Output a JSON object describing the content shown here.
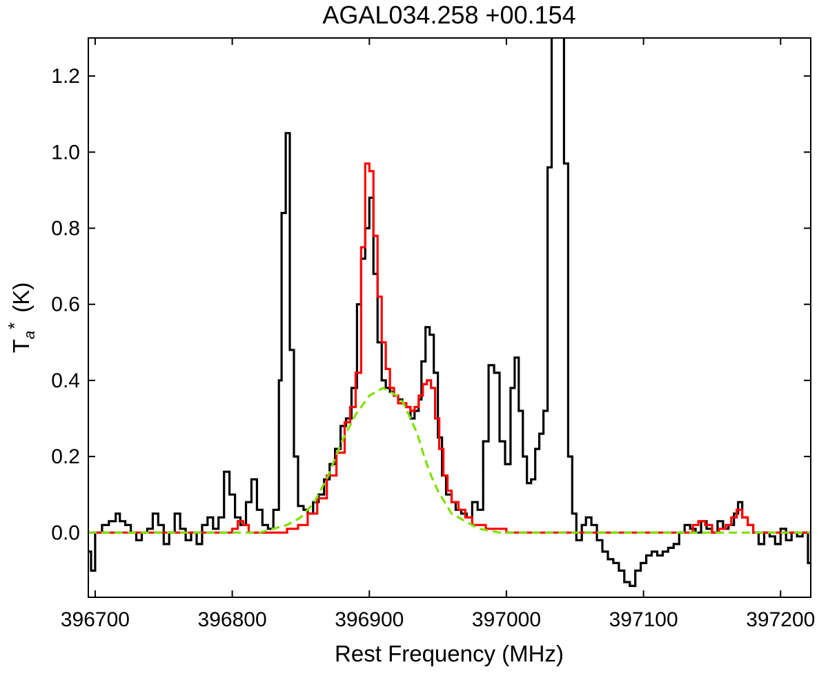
{
  "chart_data": {
    "type": "line",
    "title": "AGAL034.258 +00.154",
    "xlabel": "Rest Frequency (MHz)",
    "ylabel_main": "T",
    "ylabel_sub": "a",
    "ylabel_sup": "*",
    "ylabel_unit": "(K)",
    "xlim": [
      396695,
      397222
    ],
    "ylim": [
      -0.17,
      1.3
    ],
    "x_ticks": [
      396700,
      396800,
      396900,
      397000,
      397100,
      397200
    ],
    "x_tick_labels": [
      "396700",
      "396800",
      "396900",
      "397000",
      "397100",
      "397200"
    ],
    "y_ticks": [
      0.0,
      0.2,
      0.4,
      0.6,
      0.8,
      1.0,
      1.2
    ],
    "y_tick_labels": [
      "0.0",
      "0.2",
      "0.4",
      "0.6",
      "0.8",
      "1.0",
      "1.2"
    ],
    "grid": false,
    "series": [
      {
        "color": "#000000",
        "style": "steps",
        "points": [
          [
            396695,
            -0.05
          ],
          [
            396697,
            -0.1
          ],
          [
            396700,
            0.0
          ],
          [
            396705,
            0.02
          ],
          [
            396710,
            0.03
          ],
          [
            396715,
            0.05
          ],
          [
            396718,
            0.03
          ],
          [
            396722,
            0.02
          ],
          [
            396726,
            0.0
          ],
          [
            396730,
            -0.02
          ],
          [
            396734,
            0.0
          ],
          [
            396738,
            0.01
          ],
          [
            396742,
            0.05
          ],
          [
            396746,
            0.02
          ],
          [
            396750,
            -0.03
          ],
          [
            396754,
            0.0
          ],
          [
            396758,
            0.05
          ],
          [
            396762,
            0.01
          ],
          [
            396766,
            -0.02
          ],
          [
            396770,
            0.0
          ],
          [
            396774,
            -0.03
          ],
          [
            396778,
            0.02
          ],
          [
            396782,
            0.04
          ],
          [
            396786,
            0.01
          ],
          [
            396790,
            0.04
          ],
          [
            396794,
            0.16
          ],
          [
            396798,
            0.1
          ],
          [
            396802,
            0.04
          ],
          [
            396806,
            0.02
          ],
          [
            396810,
            0.08
          ],
          [
            396814,
            0.14
          ],
          [
            396818,
            0.06
          ],
          [
            396822,
            0.02
          ],
          [
            396826,
            0.01
          ],
          [
            396830,
            0.06
          ],
          [
            396834,
            0.4
          ],
          [
            396836,
            0.84
          ],
          [
            396839,
            1.05
          ],
          [
            396842,
            0.48
          ],
          [
            396845,
            0.2
          ],
          [
            396848,
            0.07
          ],
          [
            396852,
            0.06
          ],
          [
            396855,
            0.05
          ],
          [
            396859,
            0.08
          ],
          [
            396863,
            0.1
          ],
          [
            396867,
            0.14
          ],
          [
            396871,
            0.18
          ],
          [
            396875,
            0.22
          ],
          [
            396879,
            0.28
          ],
          [
            396883,
            0.3
          ],
          [
            396887,
            0.38
          ],
          [
            396891,
            0.6
          ],
          [
            396894,
            0.72
          ],
          [
            396897,
            0.8
          ],
          [
            396900,
            0.88
          ],
          [
            396903,
            0.68
          ],
          [
            396906,
            0.5
          ],
          [
            396909,
            0.4
          ],
          [
            396912,
            0.38
          ],
          [
            396915,
            0.37
          ],
          [
            396918,
            0.36
          ],
          [
            396921,
            0.35
          ],
          [
            396924,
            0.34
          ],
          [
            396927,
            0.33
          ],
          [
            396930,
            0.3
          ],
          [
            396933,
            0.32
          ],
          [
            396936,
            0.35
          ],
          [
            396938,
            0.45
          ],
          [
            396941,
            0.54
          ],
          [
            396944,
            0.52
          ],
          [
            396947,
            0.42
          ],
          [
            396950,
            0.25
          ],
          [
            396953,
            0.15
          ],
          [
            396956,
            0.1
          ],
          [
            396960,
            0.08
          ],
          [
            396963,
            0.06
          ],
          [
            396967,
            0.05
          ],
          [
            396971,
            0.04
          ],
          [
            396975,
            0.08
          ],
          [
            396979,
            0.06
          ],
          [
            396983,
            0.24
          ],
          [
            396987,
            0.44
          ],
          [
            396991,
            0.42
          ],
          [
            396995,
            0.24
          ],
          [
            396999,
            0.18
          ],
          [
            397003,
            0.38
          ],
          [
            397006,
            0.46
          ],
          [
            397009,
            0.32
          ],
          [
            397012,
            0.2
          ],
          [
            397015,
            0.13
          ],
          [
            397018,
            0.14
          ],
          [
            397021,
            0.22
          ],
          [
            397024,
            0.26
          ],
          [
            397027,
            0.32
          ],
          [
            397030,
            0.96
          ],
          [
            397033,
            1.4
          ],
          [
            397036,
            1.4
          ],
          [
            397039,
            1.4
          ],
          [
            397042,
            0.97
          ],
          [
            397045,
            0.2
          ],
          [
            397048,
            0.05
          ],
          [
            397051,
            -0.02
          ],
          [
            397055,
            0.02
          ],
          [
            397058,
            0.04
          ],
          [
            397062,
            0.02
          ],
          [
            397066,
            -0.02
          ],
          [
            397070,
            -0.05
          ],
          [
            397074,
            -0.07
          ],
          [
            397078,
            -0.08
          ],
          [
            397082,
            -0.1
          ],
          [
            397086,
            -0.13
          ],
          [
            397090,
            -0.14
          ],
          [
            397094,
            -0.1
          ],
          [
            397098,
            -0.08
          ],
          [
            397102,
            -0.06
          ],
          [
            397106,
            -0.05
          ],
          [
            397110,
            -0.06
          ],
          [
            397114,
            -0.05
          ],
          [
            397118,
            -0.04
          ],
          [
            397122,
            -0.03
          ],
          [
            397126,
            0.0
          ],
          [
            397130,
            0.02
          ],
          [
            397134,
            0.01
          ],
          [
            397138,
            0.0
          ],
          [
            397142,
            0.03
          ],
          [
            397146,
            0.01
          ],
          [
            397150,
            0.0
          ],
          [
            397154,
            0.03
          ],
          [
            397158,
            0.01
          ],
          [
            397162,
            0.02
          ],
          [
            397166,
            0.05
          ],
          [
            397169,
            0.08
          ],
          [
            397172,
            0.04
          ],
          [
            397176,
            0.02
          ],
          [
            397180,
            0.0
          ],
          [
            397184,
            -0.03
          ],
          [
            397188,
            0.0
          ],
          [
            397192,
            -0.01
          ],
          [
            397196,
            -0.03
          ],
          [
            397200,
            0.01
          ],
          [
            397204,
            -0.02
          ],
          [
            397208,
            0.0
          ],
          [
            397212,
            -0.01
          ],
          [
            397216,
            0.0
          ],
          [
            397220,
            -0.08
          ]
        ]
      },
      {
        "color": "#ff0000",
        "style": "steps",
        "points": [
          [
            396695,
            0.0
          ],
          [
            396780,
            0.0
          ],
          [
            396796,
            0.0
          ],
          [
            396800,
            0.01
          ],
          [
            396804,
            0.03
          ],
          [
            396808,
            0.02
          ],
          [
            396812,
            0.0
          ],
          [
            396818,
            0.0
          ],
          [
            396830,
            0.0
          ],
          [
            396840,
            0.01
          ],
          [
            396848,
            0.02
          ],
          [
            396855,
            0.05
          ],
          [
            396862,
            0.09
          ],
          [
            396869,
            0.15
          ],
          [
            396876,
            0.21
          ],
          [
            396882,
            0.29
          ],
          [
            396886,
            0.33
          ],
          [
            396890,
            0.42
          ],
          [
            396894,
            0.75
          ],
          [
            396897,
            0.97
          ],
          [
            396900,
            0.95
          ],
          [
            396903,
            0.78
          ],
          [
            396906,
            0.62
          ],
          [
            396909,
            0.5
          ],
          [
            396912,
            0.43
          ],
          [
            396915,
            0.38
          ],
          [
            396918,
            0.36
          ],
          [
            396921,
            0.34
          ],
          [
            396924,
            0.34
          ],
          [
            396927,
            0.33
          ],
          [
            396930,
            0.32
          ],
          [
            396933,
            0.33
          ],
          [
            396936,
            0.36
          ],
          [
            396939,
            0.39
          ],
          [
            396942,
            0.4
          ],
          [
            396945,
            0.38
          ],
          [
            396948,
            0.3
          ],
          [
            396951,
            0.22
          ],
          [
            396954,
            0.15
          ],
          [
            396957,
            0.11
          ],
          [
            396960,
            0.08
          ],
          [
            396965,
            0.06
          ],
          [
            396970,
            0.04
          ],
          [
            396975,
            0.02
          ],
          [
            396985,
            0.01
          ],
          [
            397000,
            0.0
          ],
          [
            397050,
            0.0
          ],
          [
            397130,
            0.0
          ],
          [
            397136,
            0.02
          ],
          [
            397140,
            0.03
          ],
          [
            397145,
            0.02
          ],
          [
            397150,
            0.0
          ],
          [
            397155,
            0.01
          ],
          [
            397160,
            0.02
          ],
          [
            397164,
            0.04
          ],
          [
            397168,
            0.06
          ],
          [
            397172,
            0.04
          ],
          [
            397176,
            0.02
          ],
          [
            397180,
            0.0
          ],
          [
            397222,
            0.0
          ]
        ]
      },
      {
        "color": "#7fe000",
        "style": "dashed",
        "points": [
          [
            396695,
            0.0
          ],
          [
            396820,
            0.0
          ],
          [
            396830,
            0.01
          ],
          [
            396840,
            0.02
          ],
          [
            396850,
            0.04
          ],
          [
            396860,
            0.08
          ],
          [
            396870,
            0.15
          ],
          [
            396880,
            0.24
          ],
          [
            396890,
            0.31
          ],
          [
            396900,
            0.36
          ],
          [
            396905,
            0.37
          ],
          [
            396910,
            0.38
          ],
          [
            396915,
            0.37
          ],
          [
            396920,
            0.36
          ],
          [
            396925,
            0.34
          ],
          [
            396930,
            0.3
          ],
          [
            396935,
            0.26
          ],
          [
            396940,
            0.2
          ],
          [
            396945,
            0.15
          ],
          [
            396950,
            0.11
          ],
          [
            396955,
            0.08
          ],
          [
            396960,
            0.05
          ],
          [
            396970,
            0.03
          ],
          [
            396980,
            0.01
          ],
          [
            396995,
            0.0
          ],
          [
            397222,
            0.0
          ]
        ]
      }
    ]
  }
}
